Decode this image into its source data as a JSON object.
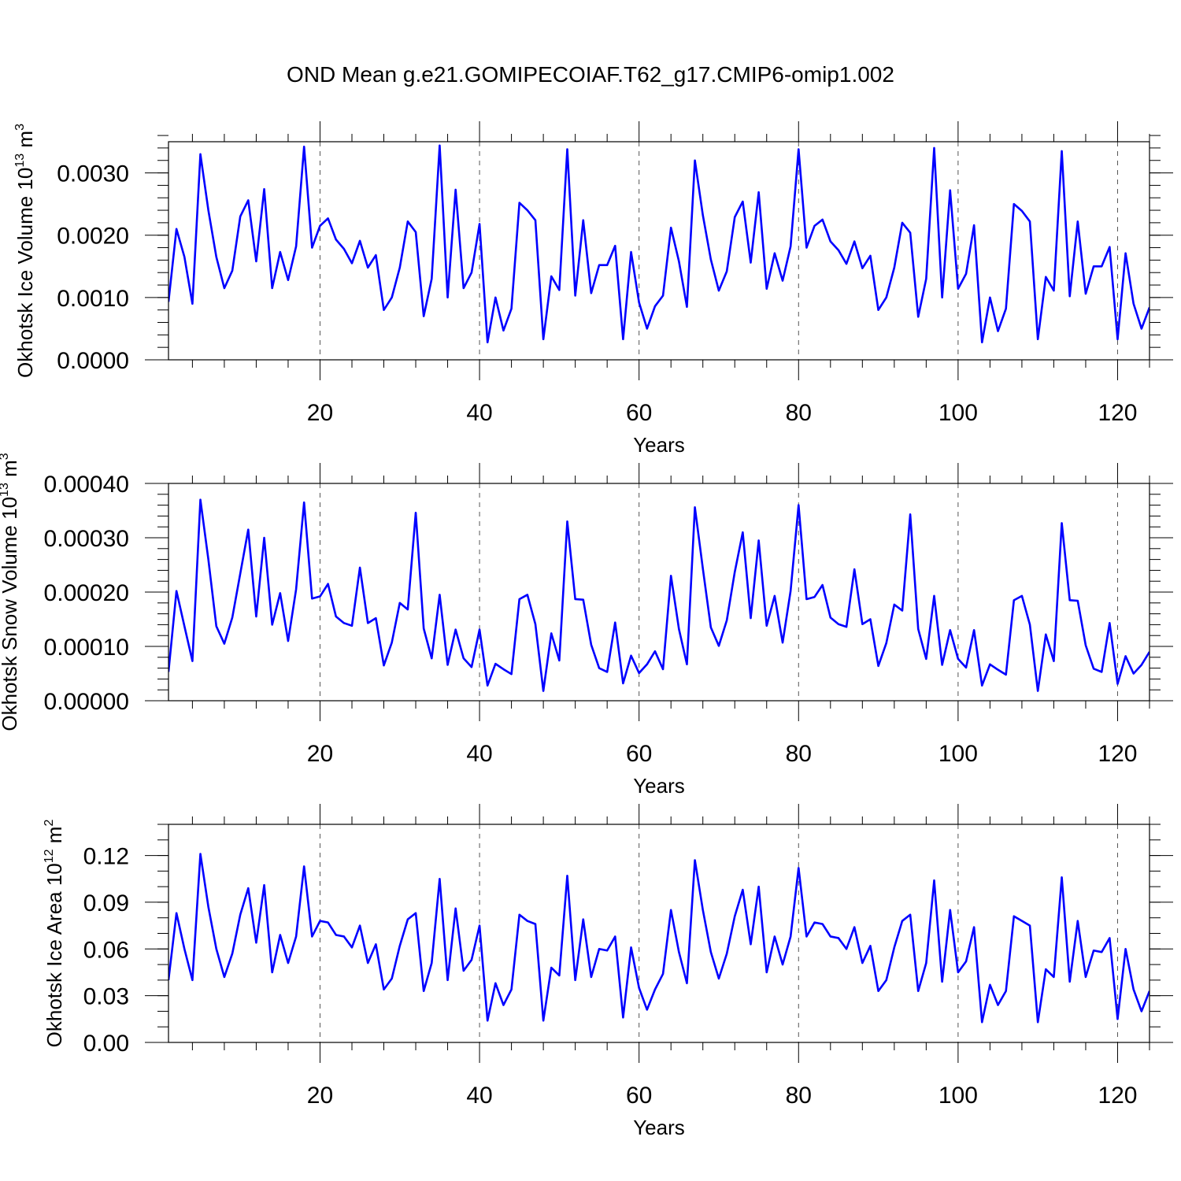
{
  "figure_title": "OND Mean g.e21.GOMIPECOIAF.T62_g17.CMIP6-omip1.002",
  "line_color": "#0000ff",
  "chart_data": [
    {
      "type": "line",
      "title": "OND Mean g.e21.GOMIPECOIAF.T62_g17.CMIP6-omip1.002",
      "xlabel": "Years",
      "ylabel": "Okhotsk Ice Volume 10",
      "ylabel_exp": "13",
      "ylabel_unit": " m",
      "ylabel_unit_exp": "3",
      "xlim": [
        1,
        124
      ],
      "ylim": [
        0,
        0.0035
      ],
      "x_ticks": [
        20,
        40,
        60,
        80,
        100,
        120
      ],
      "x_tick_labels": [
        "20",
        "40",
        "60",
        "80",
        "100",
        "120"
      ],
      "y_ticks": [
        0,
        0.001,
        0.002,
        0.003
      ],
      "y_tick_labels": [
        "0.0000",
        "0.0010",
        "0.0020",
        "0.0030"
      ],
      "y_minor_step": 0.0002,
      "x_minor_step": 4,
      "x0": 1,
      "series": [
        {
          "name": "Okhotsk Ice Volume",
          "values": [
            0.00093,
            0.0021,
            0.00165,
            0.0009,
            0.0033,
            0.0024,
            0.00165,
            0.00115,
            0.00143,
            0.0023,
            0.00256,
            0.00158,
            0.00274,
            0.00115,
            0.00173,
            0.00128,
            0.00182,
            0.00342,
            0.0018,
            0.00215,
            0.00227,
            0.00193,
            0.00178,
            0.00155,
            0.00191,
            0.00148,
            0.00168,
            0.0008,
            0.001,
            0.00148,
            0.00222,
            0.00205,
            0.0007,
            0.0013,
            0.00344,
            0.001,
            0.00273,
            0.00115,
            0.0014,
            0.00218,
            0.00028,
            0.001,
            0.00047,
            0.00082,
            0.00252,
            0.0024,
            0.00224,
            0.00033,
            0.00134,
            0.00112,
            0.00338,
            0.00103,
            0.00224,
            0.00107,
            0.00152,
            0.00152,
            0.00183,
            0.00033,
            0.00173,
            0.00092,
            0.0005,
            0.00086,
            0.00103,
            0.00212,
            0.00158,
            0.00085,
            0.0032,
            0.00232,
            0.00161,
            0.00111,
            0.00142,
            0.00229,
            0.00254,
            0.00156,
            0.00269,
            0.00114,
            0.00171,
            0.00127,
            0.00182,
            0.00338,
            0.0018,
            0.00215,
            0.00225,
            0.0019,
            0.00176,
            0.00154,
            0.0019,
            0.00147,
            0.00167,
            0.0008,
            0.001,
            0.00148,
            0.0022,
            0.00204,
            0.00069,
            0.0013,
            0.0034,
            0.001,
            0.00272,
            0.00114,
            0.00138,
            0.00216,
            0.00028,
            0.001,
            0.00046,
            0.00082,
            0.0025,
            0.00239,
            0.00222,
            0.00033,
            0.00133,
            0.00111,
            0.00335,
            0.00102,
            0.00222,
            0.00106,
            0.0015,
            0.0015,
            0.00181,
            0.00033,
            0.00171,
            0.0009,
            0.0005,
            0.00084
          ]
        }
      ]
    },
    {
      "type": "line",
      "xlabel": "Years",
      "ylabel": "Okhotsk Snow Volume 10",
      "ylabel_exp": "13",
      "ylabel_unit": " m",
      "ylabel_unit_exp": "3",
      "xlim": [
        1,
        124
      ],
      "ylim": [
        0,
        0.0004
      ],
      "x_ticks": [
        20,
        40,
        60,
        80,
        100,
        120
      ],
      "x_tick_labels": [
        "20",
        "40",
        "60",
        "80",
        "100",
        "120"
      ],
      "y_ticks": [
        0,
        0.0001,
        0.0002,
        0.0003,
        0.0004
      ],
      "y_tick_labels": [
        "0.00000",
        "0.00010",
        "0.00020",
        "0.00030",
        "0.00040"
      ],
      "y_minor_step": 2e-05,
      "x_minor_step": 4,
      "x0": 1,
      "series": [
        {
          "name": "Okhotsk Snow Volume",
          "values": [
            5.3e-05,
            0.000202,
            0.000137,
            7.3e-05,
            0.00037,
            0.00026,
            0.000137,
            0.000105,
            0.000153,
            0.000234,
            0.000315,
            0.000155,
            0.0003,
            0.00014,
            0.000198,
            0.00011,
            0.000205,
            0.000365,
            0.000188,
            0.000192,
            0.000215,
            0.000155,
            0.000143,
            0.000138,
            0.000245,
            0.000143,
            0.000152,
            6.5e-05,
            0.000107,
            0.00018,
            0.000168,
            0.000346,
            0.000133,
            7.8e-05,
            0.000195,
            6.6e-05,
            0.000131,
            7.8e-05,
            6.2e-05,
            0.000131,
            2.8e-05,
            6.8e-05,
            5.8e-05,
            4.9e-05,
            0.000187,
            0.000195,
            0.000141,
            1.8e-05,
            0.000124,
            7.4e-05,
            0.00033,
            0.000187,
            0.000186,
            0.000103,
            6e-05,
            5.3e-05,
            0.000144,
            3.2e-05,
            8.3e-05,
            5.1e-05,
            6.7e-05,
            9.1e-05,
            5.8e-05,
            0.00023,
            0.000132,
            6.7e-05,
            0.000356,
            0.000243,
            0.000135,
            0.000101,
            0.000148,
            0.000237,
            0.00031,
            0.000152,
            0.000295,
            0.000138,
            0.000193,
            0.000107,
            0.000202,
            0.00036,
            0.000187,
            0.000191,
            0.000213,
            0.000153,
            0.000141,
            0.000136,
            0.000242,
            0.000141,
            0.00015,
            6.4e-05,
            0.000106,
            0.000177,
            0.000166,
            0.000343,
            0.000132,
            7.7e-05,
            0.000193,
            6.6e-05,
            0.00013,
            7.7e-05,
            6.1e-05,
            0.00013,
            2.8e-05,
            6.7e-05,
            5.7e-05,
            4.8e-05,
            0.000185,
            0.000193,
            0.00014,
            1.8e-05,
            0.000122,
            7.3e-05,
            0.000327,
            0.000185,
            0.000184,
            0.000102,
            5.9e-05,
            5.3e-05,
            0.000143,
            3.1e-05,
            8.2e-05,
            5e-05,
            6.6e-05,
            9e-05
          ]
        }
      ]
    },
    {
      "type": "line",
      "xlabel": "Years",
      "ylabel": "Okhotsk Ice Area 10",
      "ylabel_exp": "12",
      "ylabel_unit": " m",
      "ylabel_unit_exp": "2",
      "xlim": [
        1,
        124
      ],
      "ylim": [
        0,
        0.14
      ],
      "x_ticks": [
        20,
        40,
        60,
        80,
        100,
        120
      ],
      "x_tick_labels": [
        "20",
        "40",
        "60",
        "80",
        "100",
        "120"
      ],
      "y_ticks": [
        0,
        0.03,
        0.06,
        0.09,
        0.12
      ],
      "y_tick_labels": [
        "0.00",
        "0.03",
        "0.06",
        "0.09",
        "0.12"
      ],
      "y_minor_step": 0.01,
      "x_minor_step": 4,
      "x0": 1,
      "series": [
        {
          "name": "Okhotsk Ice Area",
          "values": [
            0.04,
            0.083,
            0.06,
            0.04,
            0.121,
            0.087,
            0.06,
            0.042,
            0.057,
            0.082,
            0.099,
            0.064,
            0.101,
            0.045,
            0.069,
            0.051,
            0.068,
            0.113,
            0.068,
            0.078,
            0.077,
            0.069,
            0.068,
            0.061,
            0.075,
            0.051,
            0.063,
            0.034,
            0.041,
            0.062,
            0.079,
            0.083,
            0.033,
            0.051,
            0.105,
            0.04,
            0.086,
            0.046,
            0.053,
            0.075,
            0.014,
            0.038,
            0.024,
            0.034,
            0.082,
            0.078,
            0.076,
            0.014,
            0.048,
            0.043,
            0.107,
            0.04,
            0.079,
            0.042,
            0.06,
            0.059,
            0.068,
            0.016,
            0.061,
            0.035,
            0.021,
            0.034,
            0.044,
            0.085,
            0.058,
            0.038,
            0.117,
            0.085,
            0.058,
            0.041,
            0.057,
            0.081,
            0.098,
            0.063,
            0.1,
            0.045,
            0.068,
            0.05,
            0.068,
            0.112,
            0.068,
            0.077,
            0.076,
            0.068,
            0.067,
            0.06,
            0.074,
            0.051,
            0.062,
            0.033,
            0.04,
            0.061,
            0.078,
            0.082,
            0.033,
            0.051,
            0.104,
            0.039,
            0.085,
            0.045,
            0.052,
            0.074,
            0.013,
            0.037,
            0.024,
            0.033,
            0.081,
            0.078,
            0.075,
            0.013,
            0.047,
            0.042,
            0.106,
            0.039,
            0.078,
            0.042,
            0.059,
            0.058,
            0.067,
            0.015,
            0.06,
            0.034,
            0.02,
            0.033
          ]
        }
      ]
    }
  ]
}
